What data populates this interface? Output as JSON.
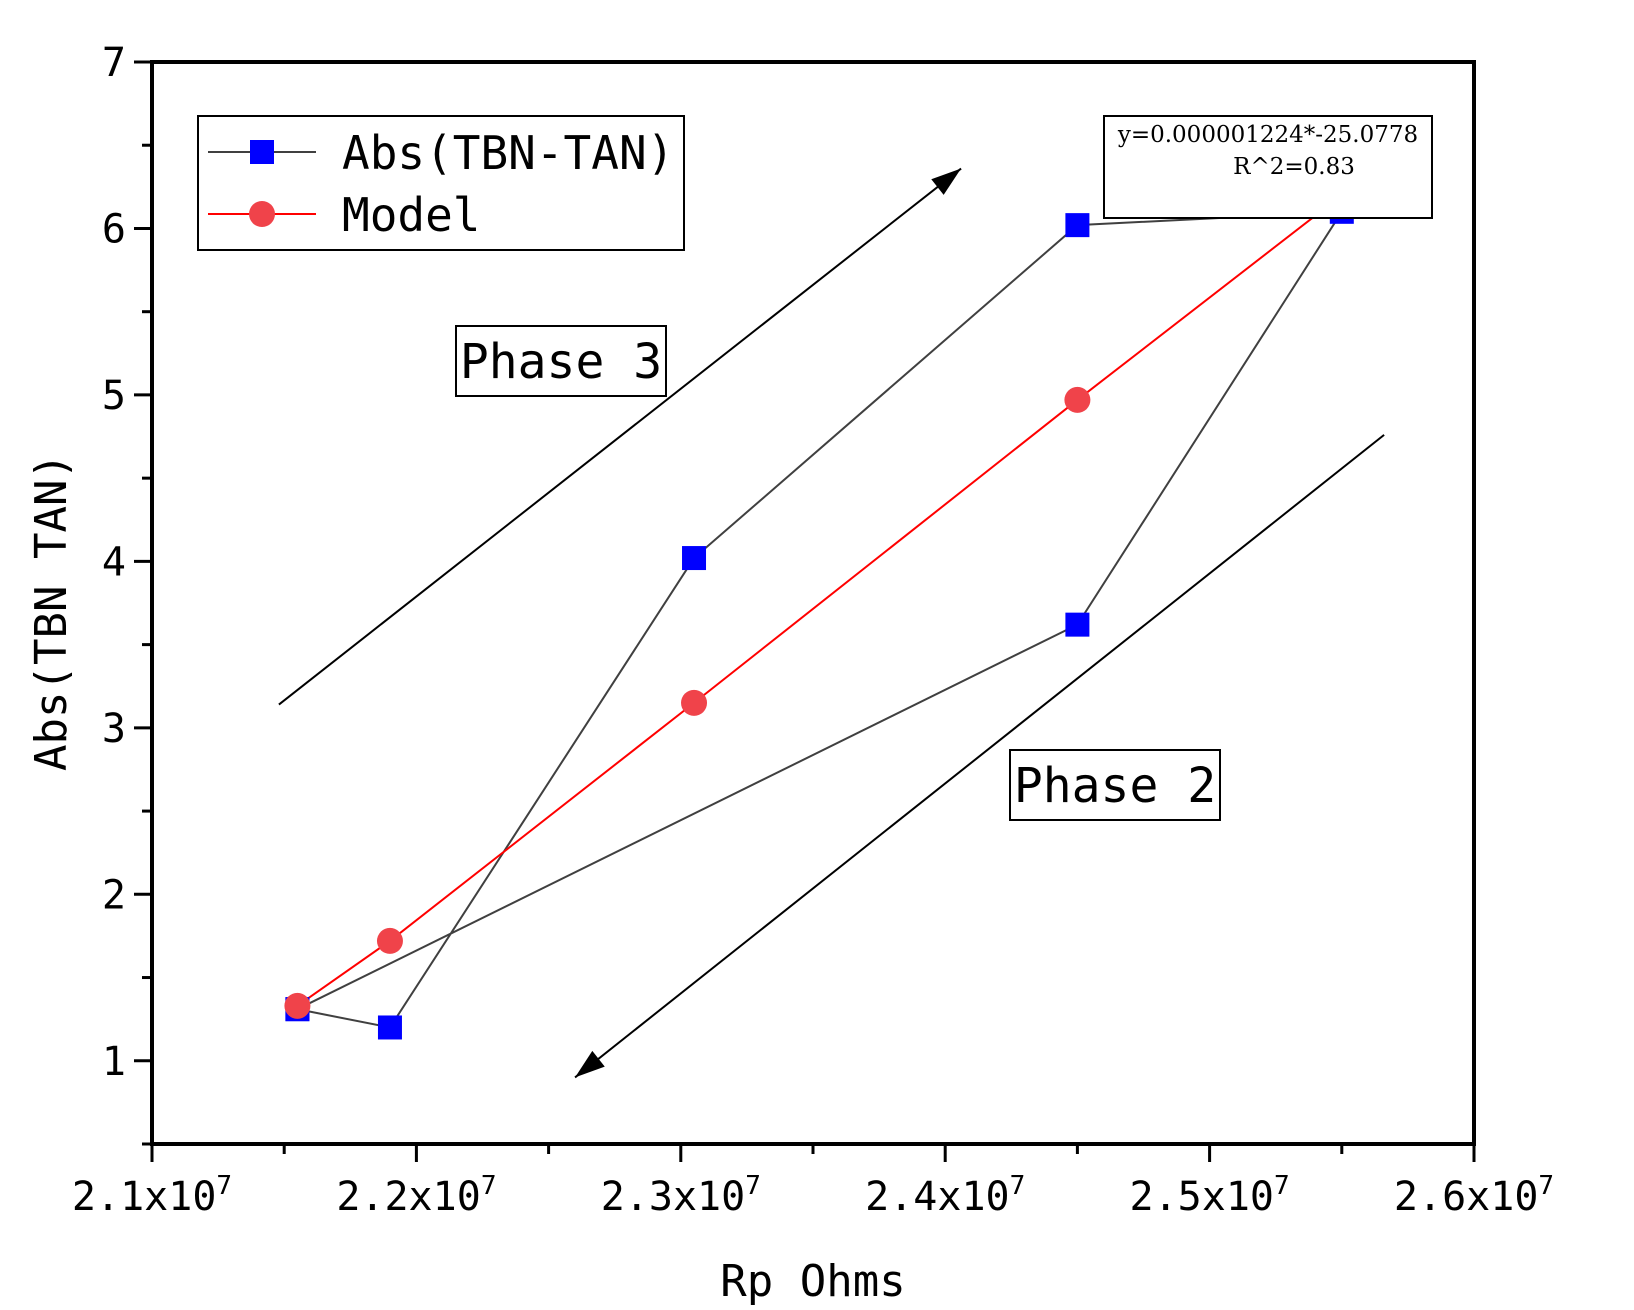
{
  "chart_data": {
    "type": "line",
    "title": "",
    "xlabel": "Rp Ohms",
    "ylabel": "Abs(TBN TAN)",
    "xlim": [
      21000000,
      26000000
    ],
    "ylim": [
      0.5,
      7
    ],
    "x_ticks": [
      21000000,
      22000000,
      23000000,
      24000000,
      25000000,
      26000000
    ],
    "x_tick_labels": [
      {
        "mantissa": "2.1x10",
        "exp": "7"
      },
      {
        "mantissa": "2.2x10",
        "exp": "7"
      },
      {
        "mantissa": "2.3x10",
        "exp": "7"
      },
      {
        "mantissa": "2.4x10",
        "exp": "7"
      },
      {
        "mantissa": "2.5x10",
        "exp": "7"
      },
      {
        "mantissa": "2.6x10",
        "exp": "7"
      }
    ],
    "y_ticks": [
      1,
      2,
      3,
      4,
      5,
      6,
      7
    ],
    "y_tick_labels": [
      "1",
      "2",
      "3",
      "4",
      "5",
      "6",
      "7"
    ],
    "grid": false,
    "legend_position": "top-left",
    "series": [
      {
        "name": "Abs(TBN-TAN)",
        "color": "#0000ff",
        "line_color": "#404040",
        "marker": "square",
        "x": [
          21550000,
          21900000,
          23050000,
          24500000,
          25500000,
          24500000,
          21550000
        ],
        "y": [
          1.31,
          1.2,
          4.02,
          6.02,
          6.1,
          3.62,
          1.31
        ]
      },
      {
        "name": "Model",
        "color": "#f0434a",
        "line_color": "#ff0000",
        "marker": "circle",
        "x": [
          21550000,
          21900000,
          23050000,
          24500000,
          25500000
        ],
        "y": [
          1.33,
          1.72,
          3.15,
          4.97,
          6.2
        ]
      }
    ],
    "annotations": {
      "phase3": "Phase 3",
      "phase2": "Phase 2",
      "fit_line1": "y=0.000001224*-25.0778",
      "fit_line2": "R^2=0.83"
    },
    "arrows": [
      {
        "name": "phase3-arrow",
        "from": [
          21480000,
          3.14
        ],
        "to": [
          24060000,
          6.36
        ]
      },
      {
        "name": "phase2-arrow",
        "from": [
          25660000,
          4.76
        ],
        "to": [
          22600000,
          0.9
        ]
      }
    ]
  }
}
